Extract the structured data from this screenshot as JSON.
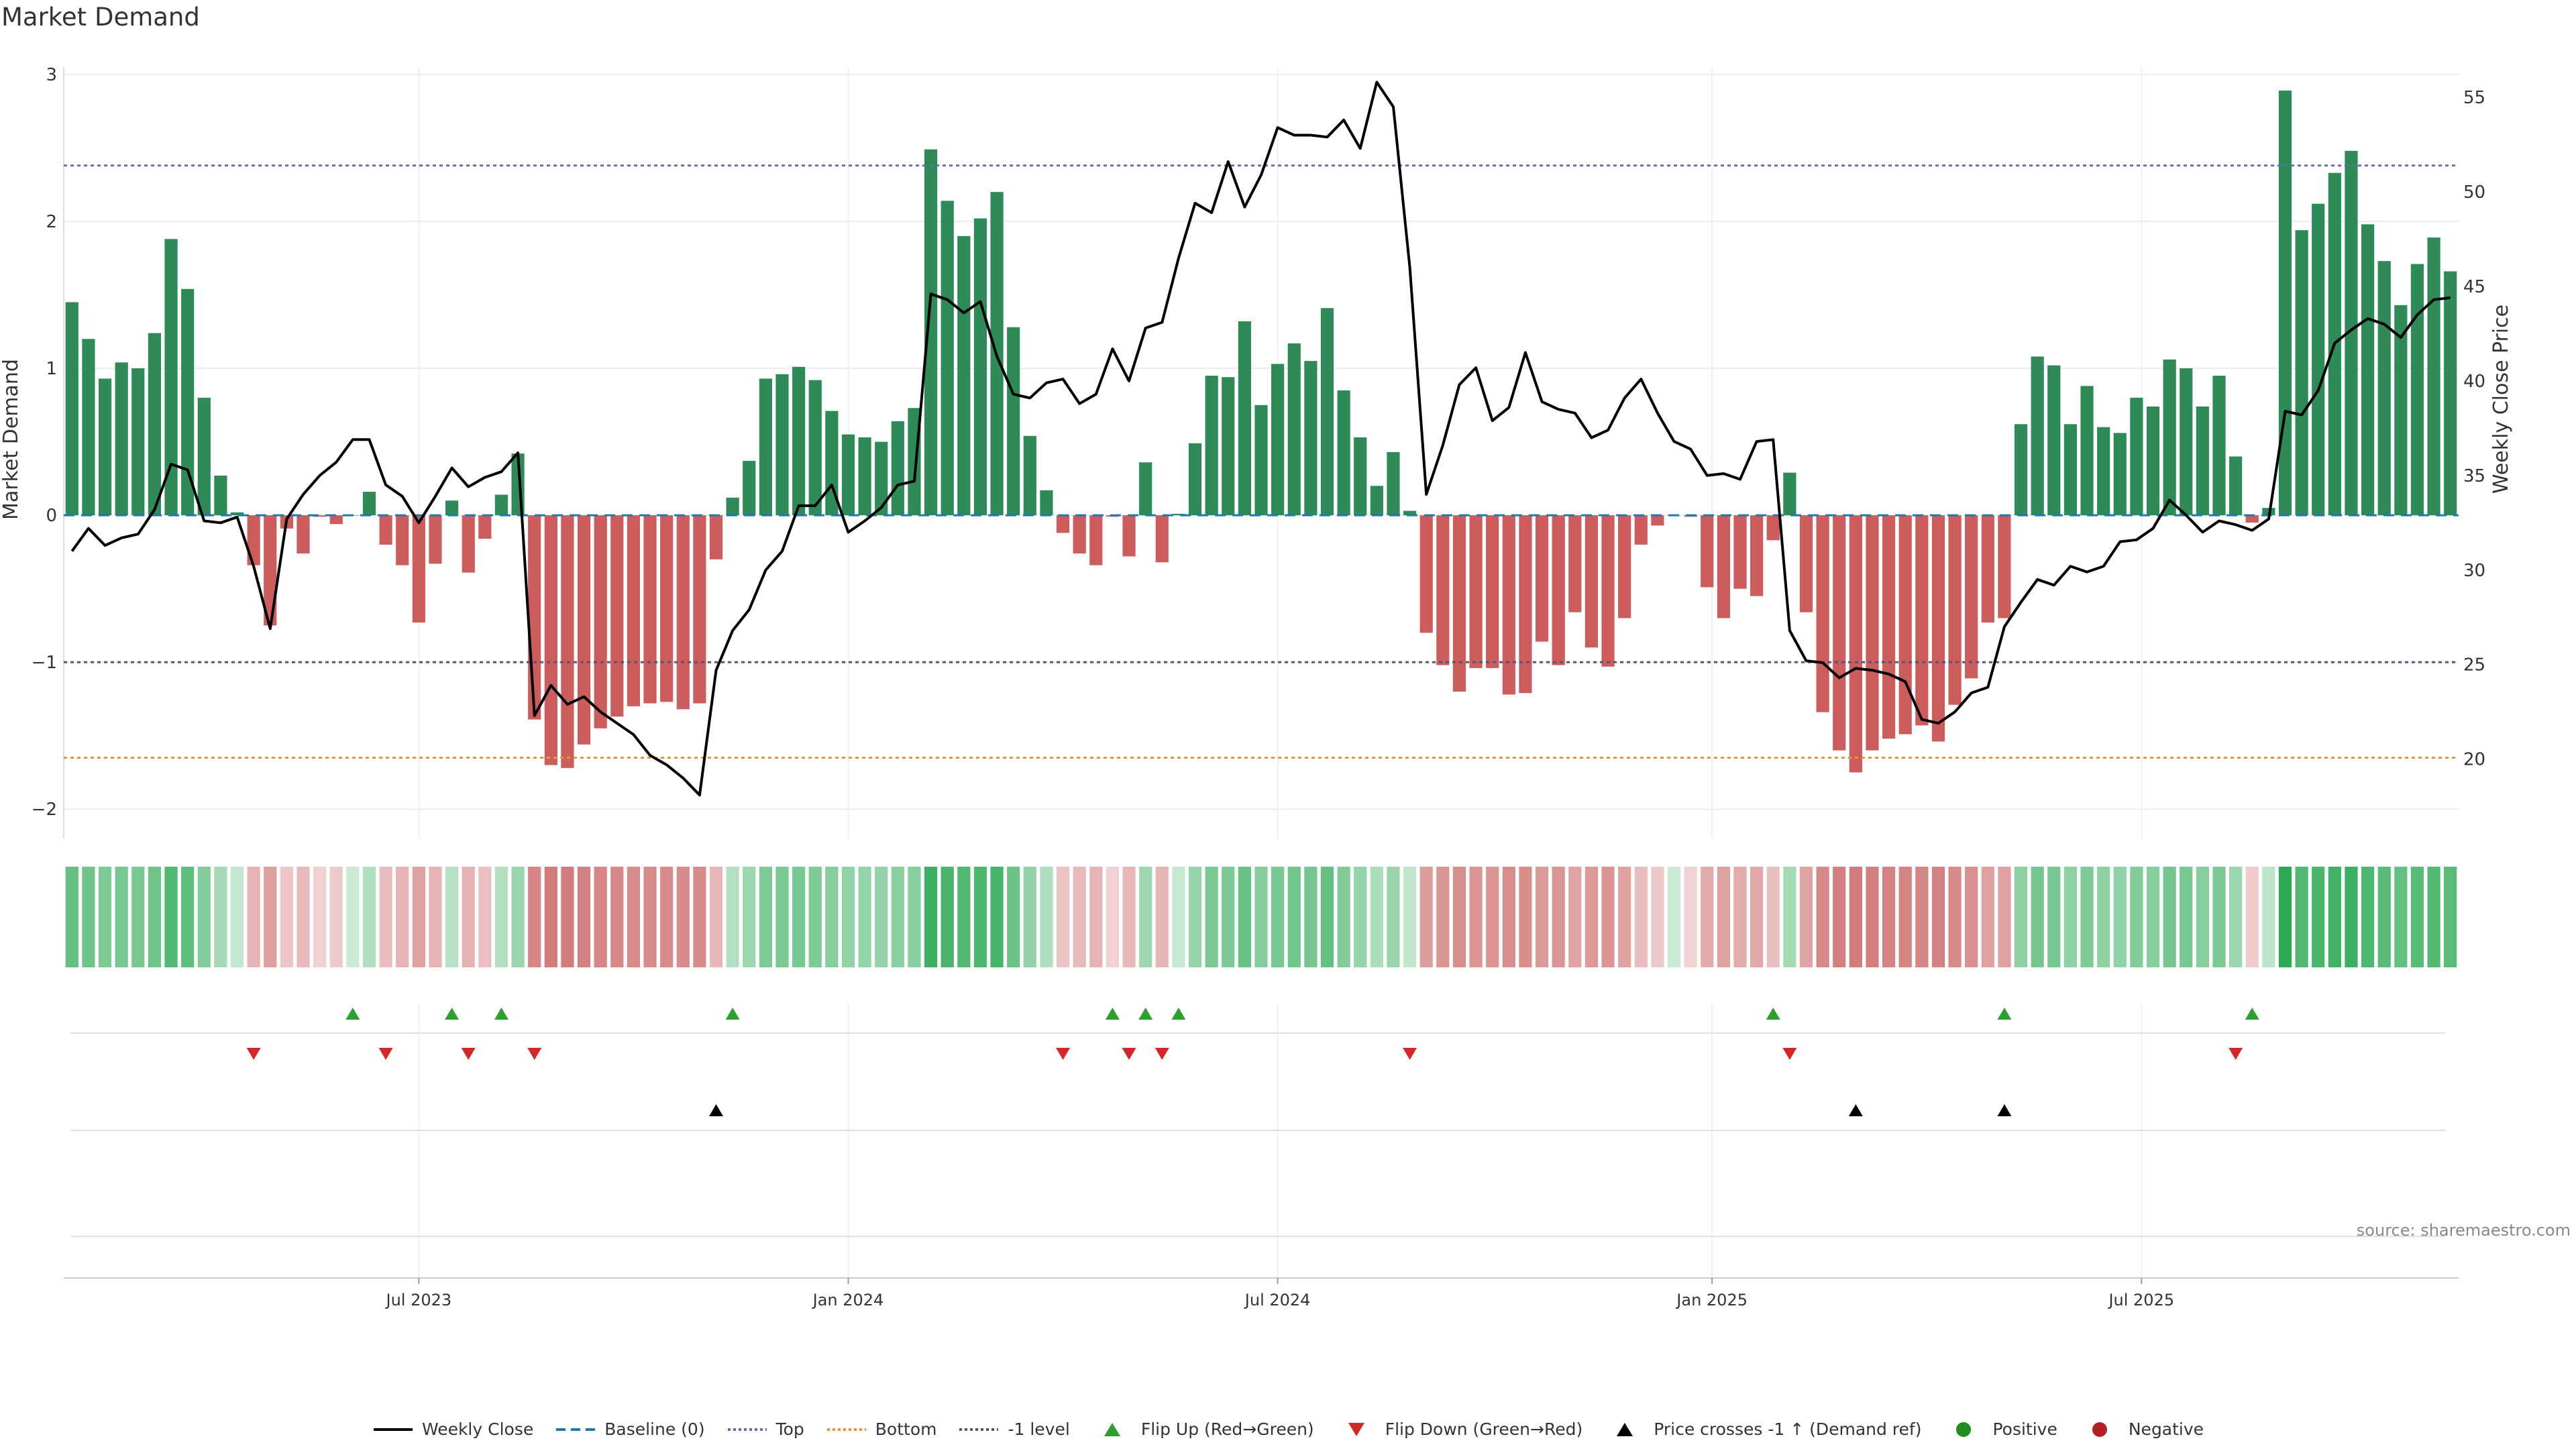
{
  "title": "Market Demand",
  "source": "source: sharemaestro.com",
  "chart_data": {
    "type": "bar+line",
    "title": "Market Demand",
    "ylabel_left": "Market Demand",
    "ylabel_right": "Weekly Close Price",
    "ylim_left": [
      -2.2,
      3.05
    ],
    "ylim_right": [
      15.8,
      56.6
    ],
    "yticks_left": [
      3,
      2,
      1,
      0,
      -1,
      -2
    ],
    "yticks_left_labels": [
      "3",
      "2",
      "1",
      "0",
      "−1",
      "−2"
    ],
    "yticks_right": [
      55,
      50,
      45,
      40,
      35,
      30,
      25,
      20
    ],
    "xtick_labels": [
      {
        "label": "Jul 2023",
        "week": 21.5
      },
      {
        "label": "Jan 2024",
        "week": 47.5
      },
      {
        "label": "Jul 2024",
        "week": 73.5
      },
      {
        "label": "Jan 2025",
        "week": 99.8
      },
      {
        "label": "Jul 2025",
        "week": 125.8
      }
    ],
    "reference_lines": {
      "top": 2.38,
      "bottom": -1.65,
      "minus_one": -1,
      "baseline": 0
    },
    "colors": {
      "positive_bar": "#2e8b57",
      "negative_bar": "#cd5c5c",
      "price_line": "#000000",
      "baseline": "#1f77b4",
      "top": "#6b6bb0",
      "bottom": "#e69a2e",
      "minus_one": "#555577",
      "flip_up": "#2ca02c",
      "flip_down": "#d62728",
      "positive": "#228b22",
      "negative": "#b22222"
    },
    "demand": [
      1.45,
      1.2,
      0.93,
      1.04,
      1.0,
      1.24,
      1.88,
      1.54,
      0.8,
      0.27,
      0.02,
      -0.34,
      -0.75,
      -0.09,
      -0.26,
      -0.01,
      -0.06,
      0.0,
      0.16,
      -0.2,
      -0.34,
      -0.73,
      -0.33,
      0.1,
      -0.39,
      -0.16,
      0.14,
      0.42,
      -1.39,
      -1.7,
      -1.72,
      -1.56,
      -1.45,
      -1.37,
      -1.3,
      -1.28,
      -1.27,
      -1.32,
      -1.28,
      -0.3,
      0.12,
      0.37,
      0.93,
      0.96,
      1.01,
      0.92,
      0.71,
      0.55,
      0.53,
      0.5,
      0.64,
      0.73,
      2.49,
      2.14,
      1.9,
      2.02,
      2.2,
      1.28,
      0.54,
      0.17,
      -0.12,
      -0.26,
      -0.34,
      -0.01,
      -0.28,
      0.36,
      -0.32,
      0.01,
      0.49,
      0.95,
      0.94,
      1.32,
      0.75,
      1.03,
      1.17,
      1.05,
      1.41,
      0.85,
      0.53,
      0.2,
      0.43,
      0.03,
      -0.8,
      -1.02,
      -1.2,
      -1.04,
      -1.04,
      -1.22,
      -1.21,
      -0.86,
      -1.02,
      -0.66,
      -0.9,
      -1.03,
      -0.7,
      -0.2,
      -0.07,
      0.0,
      -0.01,
      -0.49,
      -0.7,
      -0.5,
      -0.55,
      -0.17,
      0.29,
      -0.66,
      -1.34,
      -1.6,
      -1.75,
      -1.6,
      -1.52,
      -1.49,
      -1.43,
      -1.54,
      -1.29,
      -1.11,
      -0.73,
      -0.7,
      0.62,
      1.08,
      1.02,
      0.62,
      0.88,
      0.6,
      0.56,
      0.8,
      0.74,
      1.06,
      1.0,
      0.74,
      0.95,
      0.4,
      -0.05,
      0.05,
      2.89,
      1.94,
      2.12,
      2.33,
      2.48,
      1.98,
      1.73,
      1.43,
      1.71,
      1.89,
      1.66
    ],
    "price": [
      31.0,
      32.2,
      31.3,
      31.7,
      31.9,
      33.2,
      35.6,
      35.3,
      32.6,
      32.5,
      32.8,
      30.2,
      26.9,
      32.7,
      34.0,
      35.0,
      35.7,
      36.9,
      36.9,
      34.5,
      33.9,
      32.5,
      33.9,
      35.4,
      34.4,
      34.9,
      35.2,
      36.2,
      22.3,
      23.9,
      22.9,
      23.3,
      22.5,
      21.9,
      21.3,
      20.2,
      19.7,
      19.0,
      18.1,
      24.7,
      26.8,
      27.9,
      30.0,
      31.0,
      33.4,
      33.4,
      34.5,
      32.0,
      32.6,
      33.3,
      34.5,
      34.7,
      44.6,
      44.3,
      43.6,
      44.2,
      41.3,
      39.3,
      39.1,
      39.9,
      40.1,
      38.8,
      39.3,
      41.7,
      40.0,
      42.8,
      43.1,
      46.5,
      49.4,
      48.9,
      51.6,
      49.2,
      50.9,
      53.4,
      53.0,
      53.0,
      52.9,
      53.8,
      52.3,
      55.8,
      54.5,
      46.0,
      34.0,
      36.6,
      39.8,
      40.7,
      37.9,
      38.6,
      41.5,
      38.9,
      38.5,
      38.3,
      37.0,
      37.4,
      39.1,
      40.1,
      38.3,
      36.8,
      36.4,
      35.0,
      35.1,
      34.8,
      36.8,
      36.9,
      26.8,
      25.2,
      25.1,
      24.3,
      24.8,
      24.7,
      24.5,
      24.1,
      22.1,
      21.9,
      22.5,
      23.5,
      23.8,
      27.0,
      28.3,
      29.5,
      29.2,
      30.2,
      29.9,
      30.2,
      31.5,
      31.6,
      32.2,
      33.7,
      32.9,
      32.0,
      32.6,
      32.4,
      32.1,
      32.7,
      38.4,
      38.2,
      39.5,
      42.0,
      42.7,
      43.3,
      43.0,
      42.3,
      43.5,
      44.3,
      44.4
    ],
    "flip_up": [
      17,
      23,
      26,
      40,
      63,
      65,
      67,
      103,
      117,
      132
    ],
    "flip_down": [
      11,
      19,
      24,
      28,
      60,
      64,
      66,
      81,
      104,
      131
    ],
    "price_crosses": [
      39,
      108,
      117
    ],
    "legend": [
      {
        "label": "Weekly Close",
        "symbol": "line",
        "color": "#000000"
      },
      {
        "label": "Baseline (0)",
        "symbol": "dashed",
        "color": "#1f77b4"
      },
      {
        "label": "Top",
        "symbol": "dotted",
        "color": "#6b6bb0"
      },
      {
        "label": "Bottom",
        "symbol": "dotted",
        "color": "#e69a2e"
      },
      {
        "label": "-1 level",
        "symbol": "dotted",
        "color": "#555577"
      },
      {
        "label": "Flip Up (Red→Green)",
        "symbol": "triangle-up",
        "color": "#2ca02c"
      },
      {
        "label": "Flip Down (Green→Red)",
        "symbol": "triangle-down",
        "color": "#d62728"
      },
      {
        "label": "Price crosses -1 ↑ (Demand ref)",
        "symbol": "triangle-up",
        "color": "#000000"
      },
      {
        "label": "Positive",
        "symbol": "circle",
        "color": "#228b22"
      },
      {
        "label": "Negative",
        "symbol": "circle",
        "color": "#b22222"
      }
    ]
  }
}
